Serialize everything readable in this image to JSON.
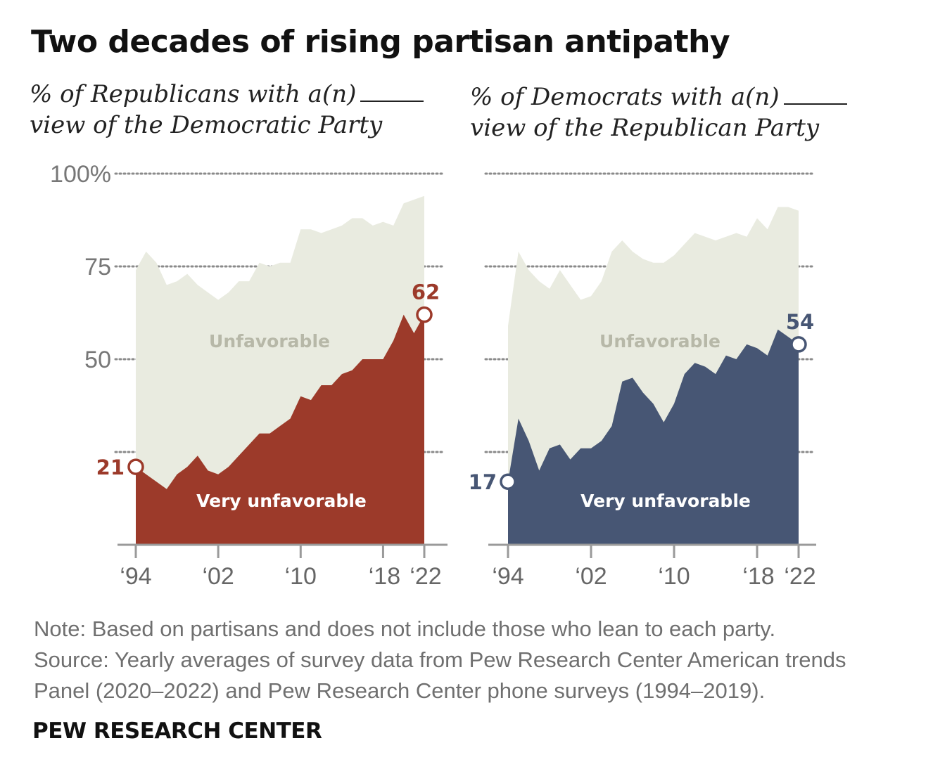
{
  "title": "Two decades of rising partisan antipathy",
  "note": "Note: Based on partisans and does not include those who lean to each party.",
  "source_lines": [
    "Source: Yearly averages of survey data from Pew Research Center American trends",
    "Panel (2020–2022) and Pew Research Center phone surveys (1994–2019)."
  ],
  "branding": "PEW RESEARCH CENTER",
  "colors": {
    "unfavorable_fill": "#e9ebe0",
    "republican_red": "#9c3a2a",
    "democrat_navy": "#475674",
    "gridline": "#8a8a8a",
    "axis": "#9a9a9a"
  },
  "chart_data": [
    {
      "type": "area",
      "subtitle_lines": [
        "% of Republicans with a(n)",
        "view of the Democratic Party"
      ],
      "ylim": [
        0,
        100
      ],
      "yticks": [
        25,
        50,
        75,
        100
      ],
      "ytick_labels": {
        "50": "50",
        "75": "75",
        "100": "100%"
      },
      "xticks": [
        1994,
        2002,
        2010,
        2018,
        2022
      ],
      "xtick_labels": [
        "‘94",
        "‘02",
        "‘10",
        "‘18",
        "‘22"
      ],
      "series": [
        {
          "name": "Unfavorable",
          "x": [
            1994,
            1995,
            1996,
            1997,
            1998,
            1999,
            2000,
            2001,
            2002,
            2003,
            2004,
            2005,
            2006,
            2007,
            2008,
            2009,
            2010,
            2011,
            2012,
            2013,
            2014,
            2015,
            2016,
            2017,
            2018,
            2019,
            2020,
            2021,
            2022
          ],
          "values": [
            74,
            79,
            76,
            70,
            71,
            73,
            70,
            68,
            66,
            68,
            71,
            71,
            76,
            75,
            76,
            76,
            85,
            85,
            84,
            85,
            86,
            88,
            88,
            86,
            87,
            86,
            92,
            93,
            94
          ]
        },
        {
          "name": "Very unfavorable",
          "x": [
            1994,
            1995,
            1996,
            1997,
            1998,
            1999,
            2000,
            2001,
            2002,
            2003,
            2004,
            2005,
            2006,
            2007,
            2008,
            2009,
            2010,
            2011,
            2012,
            2013,
            2014,
            2015,
            2016,
            2017,
            2018,
            2019,
            2020,
            2021,
            2022
          ],
          "values": [
            21,
            19,
            17,
            15,
            19,
            21,
            24,
            20,
            19,
            21,
            24,
            27,
            30,
            30,
            32,
            34,
            40,
            39,
            43,
            43,
            46,
            47,
            50,
            50,
            50,
            55,
            62,
            57,
            62
          ]
        }
      ],
      "endpoints": [
        {
          "x": 1994,
          "label": "21"
        },
        {
          "x": 2022,
          "label": "62"
        }
      ],
      "accent": "#9c3a2a"
    },
    {
      "type": "area",
      "subtitle_lines": [
        "% of Democrats with a(n)",
        "view of the Republican Party"
      ],
      "ylim": [
        0,
        100
      ],
      "yticks": [
        25,
        50,
        75,
        100
      ],
      "xticks": [
        1994,
        2002,
        2010,
        2018,
        2022
      ],
      "xtick_labels": [
        "‘94",
        "‘02",
        "‘10",
        "‘18",
        "‘22"
      ],
      "series": [
        {
          "name": "Unfavorable",
          "x": [
            1994,
            1995,
            1996,
            1997,
            1998,
            1999,
            2000,
            2001,
            2002,
            2003,
            2004,
            2005,
            2006,
            2007,
            2008,
            2009,
            2010,
            2011,
            2012,
            2013,
            2014,
            2015,
            2016,
            2017,
            2018,
            2019,
            2020,
            2021,
            2022
          ],
          "values": [
            59,
            79,
            74,
            71,
            69,
            74,
            70,
            66,
            67,
            71,
            79,
            82,
            79,
            77,
            76,
            76,
            78,
            81,
            84,
            83,
            82,
            83,
            84,
            83,
            88,
            85,
            91,
            91,
            90
          ]
        },
        {
          "name": "Very unfavorable",
          "x": [
            1994,
            1995,
            1996,
            1997,
            1998,
            1999,
            2000,
            2001,
            2002,
            2003,
            2004,
            2005,
            2006,
            2007,
            2008,
            2009,
            2010,
            2011,
            2012,
            2013,
            2014,
            2015,
            2016,
            2017,
            2018,
            2019,
            2020,
            2021,
            2022
          ],
          "values": [
            17,
            34,
            28,
            20,
            26,
            27,
            23,
            26,
            26,
            28,
            32,
            44,
            45,
            41,
            38,
            33,
            38,
            46,
            49,
            48,
            46,
            51,
            50,
            54,
            53,
            51,
            58,
            56,
            54
          ]
        }
      ],
      "endpoints": [
        {
          "x": 1994,
          "label": "17"
        },
        {
          "x": 2022,
          "label": "54"
        }
      ],
      "accent": "#475674"
    }
  ]
}
